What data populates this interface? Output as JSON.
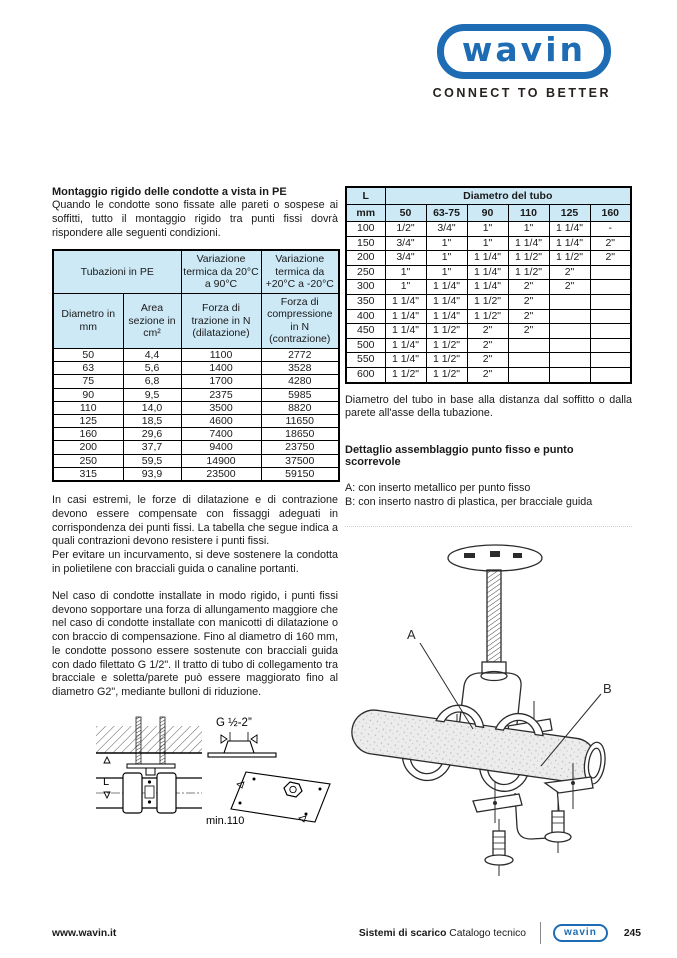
{
  "header": {
    "logo_text": "wavin",
    "tagline": "CONNECT TO BETTER"
  },
  "left": {
    "heading": "Montaggio rigido delle condotte a vista in PE",
    "intro": "Quando le condotte sono fissate alle pareti o sospese ai soffitti, tutto il montaggio rigido tra punti fissi dovrà rispondere alle seguenti condizioni.",
    "table1": {
      "group_header": "Tubazioni in PE",
      "var_header_1": "Variazione termica da 20°C a 90°C",
      "var_header_2": "Variazione termica da +20°C a -20°C",
      "col_headers": [
        "Diametro in mm",
        "Area sezione in cm²",
        "Forza di trazione in N (dilatazione)",
        "Forza di compressione in N (contrazione)"
      ],
      "rows": [
        [
          "50",
          "4,4",
          "1100",
          "2772"
        ],
        [
          "63",
          "5,6",
          "1400",
          "3528"
        ],
        [
          "75",
          "6,8",
          "1700",
          "4280"
        ],
        [
          "90",
          "9,5",
          "2375",
          "5985"
        ],
        [
          "110",
          "14,0",
          "3500",
          "8820"
        ],
        [
          "125",
          "18,5",
          "4600",
          "11650"
        ],
        [
          "160",
          "29,6",
          "7400",
          "18650"
        ],
        [
          "200",
          "37,7",
          "9400",
          "23750"
        ],
        [
          "250",
          "59,5",
          "14900",
          "37500"
        ],
        [
          "315",
          "93,9",
          "23500",
          "59150"
        ]
      ]
    },
    "para1": "In casi estremi, le forze di dilatazione e di contrazione devono essere compensate con fissaggi adeguati in corrispondenza dei punti fissi. La tabella che segue indica a quali contrazioni devono resistere i punti fissi.",
    "para2": "Per evitare un incurvamento, si deve sostenere la condotta in polietilene con bracciali guida o canaline portanti.",
    "para3": "Nel caso di condotte installate in modo rigido, i punti fissi devono sopportare una forza di allungamento maggiore che nel caso di condotte installate con manicotti di dilatazione o con braccio di compensazione. Fino al diametro di 160 mm, le condotte possono essere sostenute con bracciali guida con dado filettato G 1/2\". Il tratto di tubo di collegamento tra bracciale e soletta/parete può essere maggiorato fino al diametro G2\", mediante bulloni di riduzione.",
    "diagram": {
      "label_g": "G ½-2\"",
      "label_l": "L",
      "label_min": "min.110"
    }
  },
  "right": {
    "table2": {
      "l_header": "L",
      "group_header": "Diametro del tubo",
      "col_headers": [
        "mm",
        "50",
        "63-75",
        "90",
        "110",
        "125",
        "160"
      ],
      "rows": [
        [
          "100",
          "1/2\"",
          "3/4\"",
          "1\"",
          "1\"",
          "1 1/4\"",
          "-"
        ],
        [
          "150",
          "3/4\"",
          "1\"",
          "1\"",
          "1 1/4\"",
          "1 1/4\"",
          "2\""
        ],
        [
          "200",
          "3/4\"",
          "1\"",
          "1 1/4\"",
          "1 1/2\"",
          "1 1/2\"",
          "2\""
        ],
        [
          "250",
          "1\"",
          "1\"",
          "1 1/4\"",
          "1 1/2\"",
          "2\"",
          ""
        ],
        [
          "300",
          "1\"",
          "1 1/4\"",
          "1 1/4\"",
          "2\"",
          "2\"",
          ""
        ],
        [
          "350",
          "1 1/4\"",
          "1 1/4\"",
          "1 1/2\"",
          "2\"",
          "",
          ""
        ],
        [
          "400",
          "1 1/4\"",
          "1 1/4\"",
          "1 1/2\"",
          "2\"",
          "",
          ""
        ],
        [
          "450",
          "1 1/4\"",
          "1 1/2\"",
          "2\"",
          "2\"",
          "",
          ""
        ],
        [
          "500",
          "1 1/4\"",
          "1 1/2\"",
          "2\"",
          "",
          "",
          ""
        ],
        [
          "550",
          "1 1/4\"",
          "1 1/2\"",
          "2\"",
          "",
          "",
          ""
        ],
        [
          "600",
          "1 1/2\"",
          "1 1/2\"",
          "2\"",
          "",
          "",
          ""
        ]
      ]
    },
    "caption": "Diametro del tubo in base alla distanza dal soffitto o dalla parete all'asse della tubazione.",
    "detail_heading": "Dettaglio assemblaggio punto fisso e punto scorrevole",
    "legend_a": "A: con inserto metallico per punto fisso",
    "legend_b": "B: con inserto nastro di plastica, per bracciale guida",
    "illustration": {
      "label_a": "A",
      "label_b": "B"
    }
  },
  "footer": {
    "url": "www.wavin.it",
    "series_bold": "Sistemi di scarico",
    "series_regular": "Catalogo tecnico",
    "logo_text": "wavin",
    "page_number": "245"
  },
  "colors": {
    "brand_blue": "#1d6cb4",
    "table_header_bg": "#cde9f6"
  }
}
